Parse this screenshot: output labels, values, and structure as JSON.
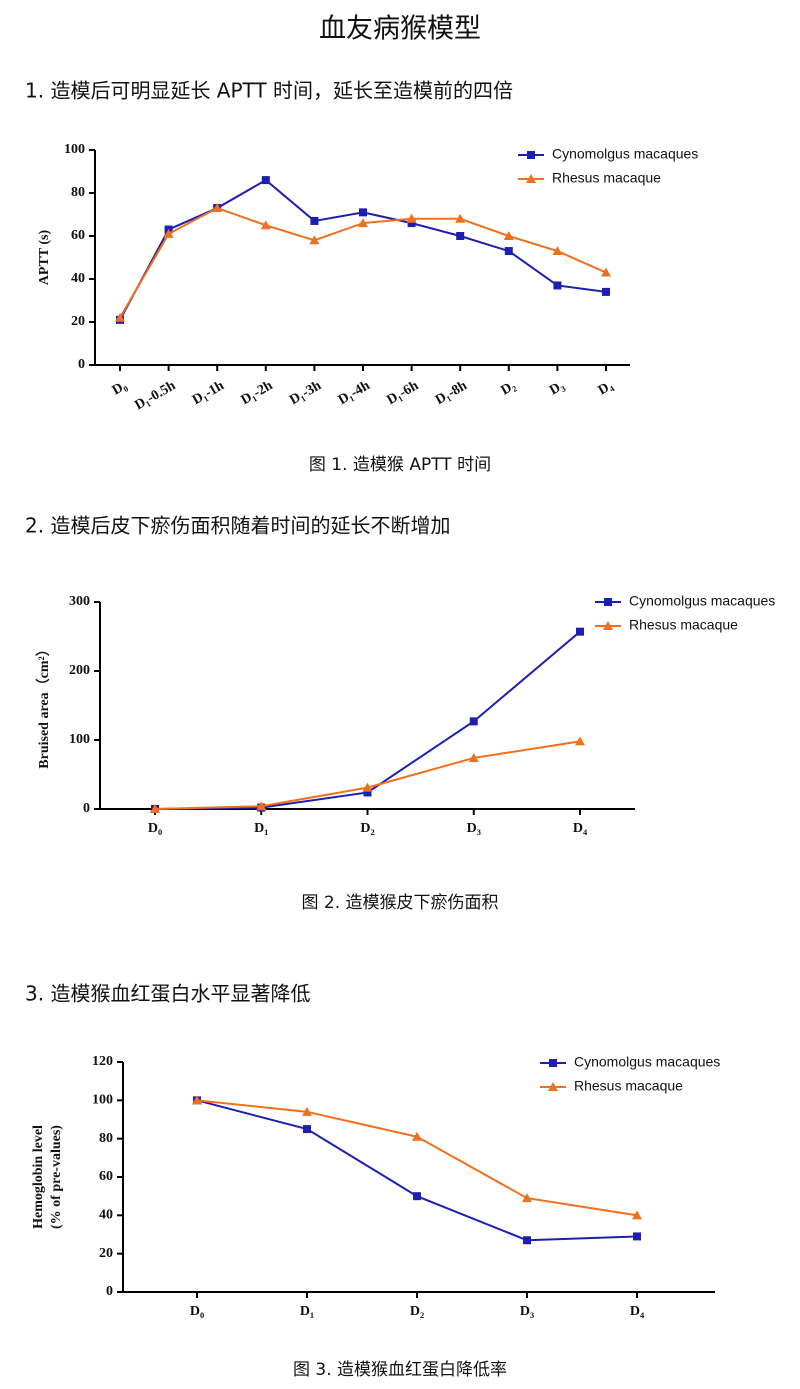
{
  "title": "血友病猴模型",
  "sections": [
    {
      "heading": "1. 造模后可明显延长 APTT 时间，延长至造模前的四倍",
      "caption": "图 1. 造模猴 APTT 时间"
    },
    {
      "heading": "2. 造模后皮下瘀伤面积随着时间的延长不断增加",
      "caption": "图 2. 造模猴皮下瘀伤面积"
    },
    {
      "heading": "3. 造模猴血红蛋白水平显著降低",
      "caption": "图 3. 造模猴血红蛋白降低率"
    }
  ],
  "chart_data": [
    {
      "type": "line",
      "ylabel": [
        "APTT (s)"
      ],
      "categories": [
        "D₀",
        "D₁-0.5h",
        "D₁-1h",
        "D₁-2h",
        "D₁-3h",
        "D₁-4h",
        "D₁-6h",
        "D₁-8h",
        "D₂",
        "D₃",
        "D₄"
      ],
      "series": [
        {
          "name": "Cynomolgus macaques",
          "color": "#1c1fb0",
          "marker": "square",
          "values": [
            21,
            63,
            73,
            86,
            67,
            71,
            66,
            60,
            53,
            37,
            34
          ]
        },
        {
          "name": "Rhesus macaque",
          "color": "#f0701e",
          "marker": "triangle",
          "values": [
            22,
            61,
            73,
            65,
            58,
            66,
            68,
            68,
            60,
            53,
            43
          ]
        }
      ],
      "ylim": [
        0,
        100
      ],
      "yticks": [
        0,
        20,
        40,
        60,
        80,
        100
      ],
      "legend": "upper right"
    },
    {
      "type": "line",
      "ylabel": [
        "Bruised area（cm²）"
      ],
      "categories": [
        "D₀",
        "D₁",
        "D₂",
        "D₃",
        "D₄"
      ],
      "series": [
        {
          "name": "Cynomolgus macaques",
          "color": "#1c1fb0",
          "marker": "square",
          "values": [
            0,
            2,
            24,
            127,
            257
          ]
        },
        {
          "name": "Rhesus macaque",
          "color": "#f0701e",
          "marker": "triangle",
          "values": [
            0,
            4,
            31,
            74,
            98
          ]
        }
      ],
      "ylim": [
        0,
        300
      ],
      "yticks": [
        0,
        100,
        200,
        300
      ],
      "legend": "upper right"
    },
    {
      "type": "line",
      "ylabel": [
        "Hemoglobin level",
        "(% of pre-values)"
      ],
      "categories": [
        "D₀",
        "D₁",
        "D₂",
        "D₃",
        "D₄"
      ],
      "series": [
        {
          "name": "Cynomolgus macaques",
          "color": "#1c1fb0",
          "marker": "square",
          "values": [
            100,
            85,
            50,
            27,
            29
          ]
        },
        {
          "name": "Rhesus macaque",
          "color": "#f0701e",
          "marker": "triangle",
          "values": [
            100,
            94,
            81,
            49,
            40
          ]
        }
      ],
      "ylim": [
        0,
        120
      ],
      "yticks": [
        0,
        20,
        40,
        60,
        80,
        100,
        120
      ],
      "legend": "upper right"
    }
  ]
}
